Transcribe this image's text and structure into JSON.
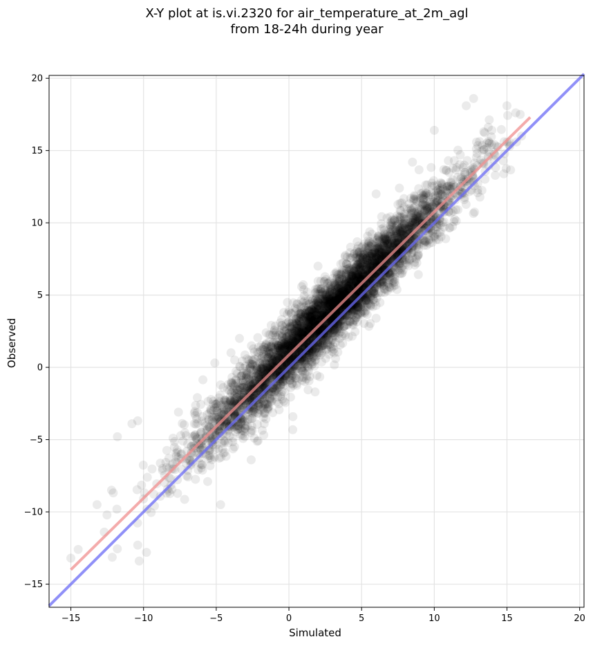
{
  "chart_data": {
    "type": "scatter",
    "title": "X-Y plot at is.vi.2320 for air_temperature_at_2m_agl",
    "subtitle": "from 18-24h during year",
    "xlabel": "Simulated",
    "ylabel": "Observed",
    "xlim": [
      -16.5,
      20.3
    ],
    "ylim": [
      -16.6,
      20.2
    ],
    "x_ticks": [
      -15,
      -10,
      -5,
      0,
      5,
      10,
      15,
      20
    ],
    "y_ticks": [
      -15,
      -10,
      -5,
      0,
      5,
      10,
      15,
      20
    ],
    "x_tick_labels": [
      "−15",
      "−10",
      "−5",
      "0",
      "5",
      "10",
      "15",
      "20"
    ],
    "y_tick_labels": [
      "−15",
      "−10",
      "−5",
      "0",
      "5",
      "10",
      "15",
      "20"
    ],
    "grid": true,
    "scatter_color": "#000000",
    "scatter_alpha": 0.08,
    "scatter_cloud": {
      "point_count_estimate": 5000,
      "x_range": [
        -15,
        16
      ],
      "relation": "observed ≈ 0.997 × simulated + 0.94, spread ±1.2",
      "representative_points": [
        [
          -15.0,
          -13.2
        ],
        [
          -14.5,
          -12.6
        ],
        [
          -13.2,
          -9.5
        ],
        [
          -12.7,
          -11.4
        ],
        [
          -12.2,
          -8.5
        ],
        [
          -11.8,
          -4.8
        ],
        [
          -10.8,
          -3.9
        ],
        [
          -10.4,
          -3.7
        ],
        [
          -10.3,
          -13.4
        ],
        [
          -10.4,
          -12.3
        ],
        [
          -9.8,
          -12.8
        ],
        [
          -8.7,
          -7.0
        ],
        [
          -7.6,
          -3.1
        ],
        [
          -6.5,
          -3.9
        ],
        [
          -5.1,
          0.3
        ],
        [
          -4.7,
          -9.5
        ],
        [
          -3.4,
          2.0
        ],
        [
          -2.6,
          -6.4
        ],
        [
          -1.7,
          -3.9
        ],
        [
          -0.1,
          4.5
        ],
        [
          1.8,
          -1.7
        ],
        [
          2.0,
          7.0
        ],
        [
          4.7,
          8.2
        ],
        [
          6.0,
          3.4
        ],
        [
          6.0,
          12.0
        ],
        [
          7.6,
          12.4
        ],
        [
          8.5,
          14.2
        ],
        [
          10.0,
          16.4
        ],
        [
          11.3,
          10.8
        ],
        [
          12.2,
          18.1
        ],
        [
          12.7,
          18.6
        ],
        [
          13.4,
          16.3
        ],
        [
          15.0,
          18.1
        ],
        [
          15.2,
          15.3
        ],
        [
          16.0,
          16.0
        ]
      ]
    },
    "lines": [
      {
        "role": "one-to-one",
        "color": "#6b6bf5",
        "x": [
          -16.5,
          20.3
        ],
        "y": [
          -16.5,
          20.3
        ]
      },
      {
        "role": "regression",
        "color": "#f08f8f",
        "x": [
          -15.0,
          16.6
        ],
        "y": [
          -14.0,
          17.3
        ]
      }
    ]
  }
}
